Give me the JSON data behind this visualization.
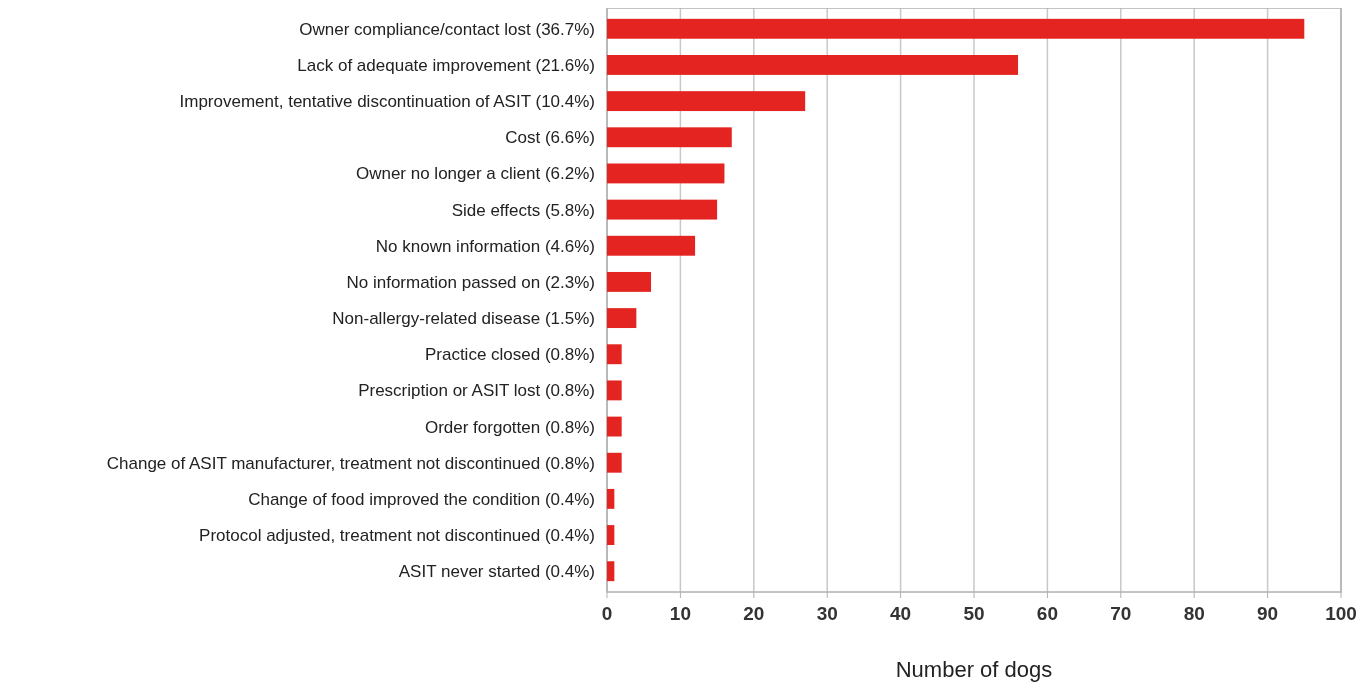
{
  "chart_data": {
    "type": "bar",
    "orientation": "horizontal",
    "xlabel": "Number of dogs",
    "categories": [
      "Owner compliance/contact lost (36.7%)",
      "Lack of adequate improvement (21.6%)",
      "Improvement, tentative discontinuation of ASIT (10.4%)",
      "Cost (6.6%)",
      "Owner no longer a client (6.2%)",
      "Side effects (5.8%)",
      "No known information (4.6%)",
      "No information passed on (2.3%)",
      "Non-allergy-related disease (1.5%)",
      "Practice closed (0.8%)",
      "Prescription or ASIT lost (0.8%)",
      "Order forgotten (0.8%)",
      "Change of ASIT manufacturer, treatment not discontinued (0.8%)",
      "Change of food improved the condition (0.4%)",
      "Protocol adjusted, treatment not discontinued (0.4%)",
      "ASIT never started (0.4%)"
    ],
    "values": [
      95,
      56,
      27,
      17,
      16,
      15,
      12,
      6,
      4,
      2,
      2,
      2,
      2,
      1,
      1,
      1
    ],
    "color": "#e32420",
    "xlim": [
      0,
      100
    ],
    "xticks": [
      0,
      10,
      20,
      30,
      40,
      50,
      60,
      70,
      80,
      90,
      100
    ],
    "grid": "x"
  }
}
